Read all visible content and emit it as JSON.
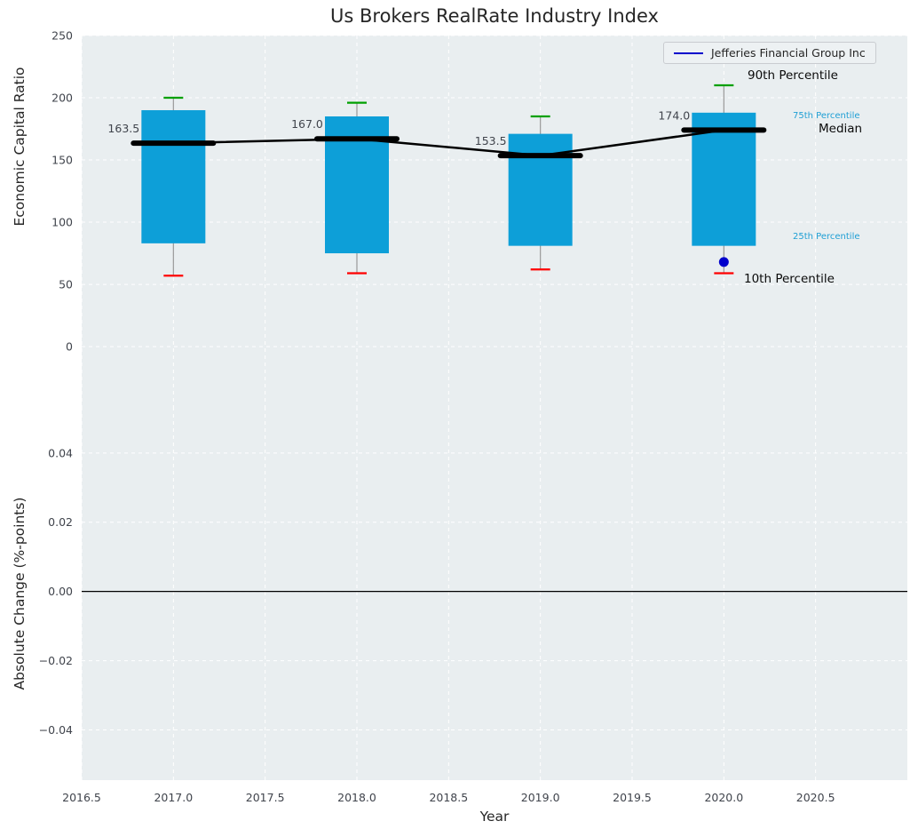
{
  "chart_data": {
    "type": "boxplot",
    "title": "Us Brokers RealRate Industry Index",
    "xlabel": "Year",
    "legend": {
      "label": "Jefferies Financial Group Inc",
      "color": "#0000cc"
    },
    "annotations": {
      "p90_label": "90th Percentile",
      "p75_label": "75th Percentile",
      "median_label": "Median",
      "p25_label": "25th Percentile",
      "p10_label": "10th Percentile"
    },
    "top_panel": {
      "ylabel": "Economic Capital Ratio",
      "ylim": [
        -48.5,
        250
      ],
      "yticks": [
        0,
        50,
        100,
        150,
        200,
        250
      ],
      "ytick_labels": [
        "0",
        "50",
        "100",
        "150",
        "200",
        "250"
      ],
      "xlim": [
        2016.5,
        2021.0
      ],
      "xticks": [
        2016.5,
        2017.0,
        2017.5,
        2018.0,
        2018.5,
        2019.0,
        2019.5,
        2020.0,
        2020.5
      ],
      "xtick_labels": [
        "2016.5",
        "2017.0",
        "2017.5",
        "2018.0",
        "2018.5",
        "2019.0",
        "2019.5",
        "2020.0",
        "2020.5"
      ],
      "years": [
        2017,
        2018,
        2019,
        2020
      ],
      "p90": [
        200,
        196,
        185,
        210
      ],
      "p75": [
        190,
        185,
        171,
        188
      ],
      "median": [
        163.5,
        167.0,
        153.5,
        174.0
      ],
      "median_labels": [
        "163.5",
        "167.0",
        "153.5",
        "174.0"
      ],
      "p25": [
        83,
        75,
        81,
        81
      ],
      "p10": [
        57,
        59,
        62,
        59
      ],
      "company_point": {
        "year": 2020,
        "value": 68
      }
    },
    "bottom_panel": {
      "ylabel": "Absolute Change (%-points)",
      "ylim": [
        -0.0545,
        0.0533
      ],
      "yticks": [
        -0.04,
        -0.02,
        0,
        0.02,
        0.04
      ],
      "ytick_labels": [
        "−0.04",
        "−0.02",
        "0.00",
        "0.02",
        "0.04"
      ],
      "zero_line": 0.0
    },
    "colors": {
      "box_fill": "#0d9fd8",
      "median_line": "#000000",
      "connector": "#000000",
      "cap_top": "#00a000",
      "cap_bottom": "#ff0000",
      "whisker": "#999999",
      "panel_bg": "#e9eef0",
      "grid": "#ffffff",
      "percentile_text": "#1f9fd4",
      "company_point": "#0000cc",
      "zero_line": "#000000"
    }
  }
}
